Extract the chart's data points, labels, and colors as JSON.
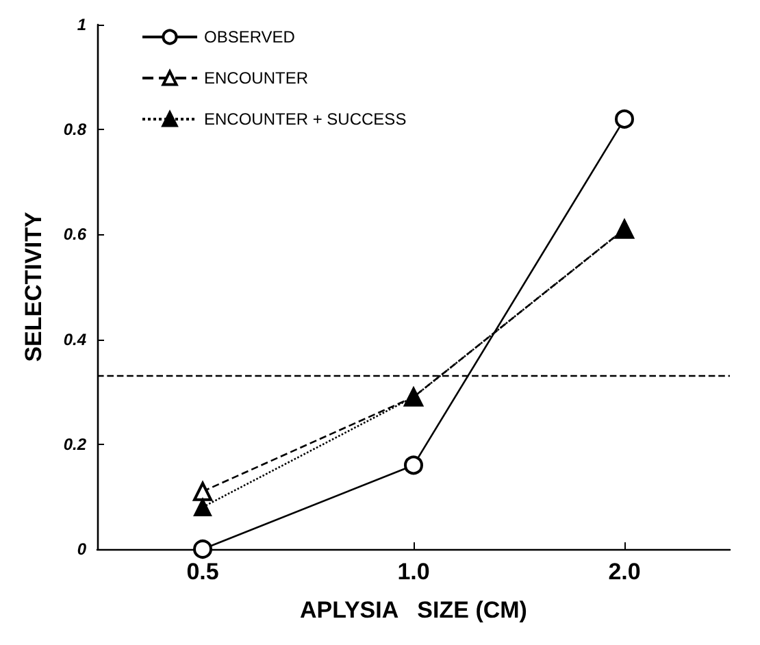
{
  "chart_data": {
    "type": "line",
    "xlabel": "APLYSIA   SIZE (CM)",
    "ylabel": "SELECTIVITY",
    "categories": [
      "0.5",
      "1.0",
      "2.0"
    ],
    "series": [
      {
        "name": "OBSERVED",
        "color": "#000000",
        "values": [
          0.0,
          0.16,
          0.82
        ],
        "marker": "circle",
        "line_style": "solid"
      },
      {
        "name": "ENCOUNTER",
        "color": "#000000",
        "values": [
          0.11,
          0.29,
          0.61
        ],
        "marker": "triangle",
        "line_style": "dashed"
      },
      {
        "name": "ENCOUNTER + SUCCESS",
        "color": "#000000",
        "values": [
          0.08,
          0.29,
          0.61
        ],
        "marker": "triangle",
        "line_style": "dotted"
      }
    ],
    "ylim": [
      0,
      1
    ],
    "yticks": [
      0,
      0.2,
      0.4,
      0.6,
      0.8,
      1
    ],
    "grid": false,
    "legend": "top left",
    "ref_lines": [
      {
        "axis": "y",
        "value": 0.33,
        "line_style": "dashed"
      }
    ]
  }
}
